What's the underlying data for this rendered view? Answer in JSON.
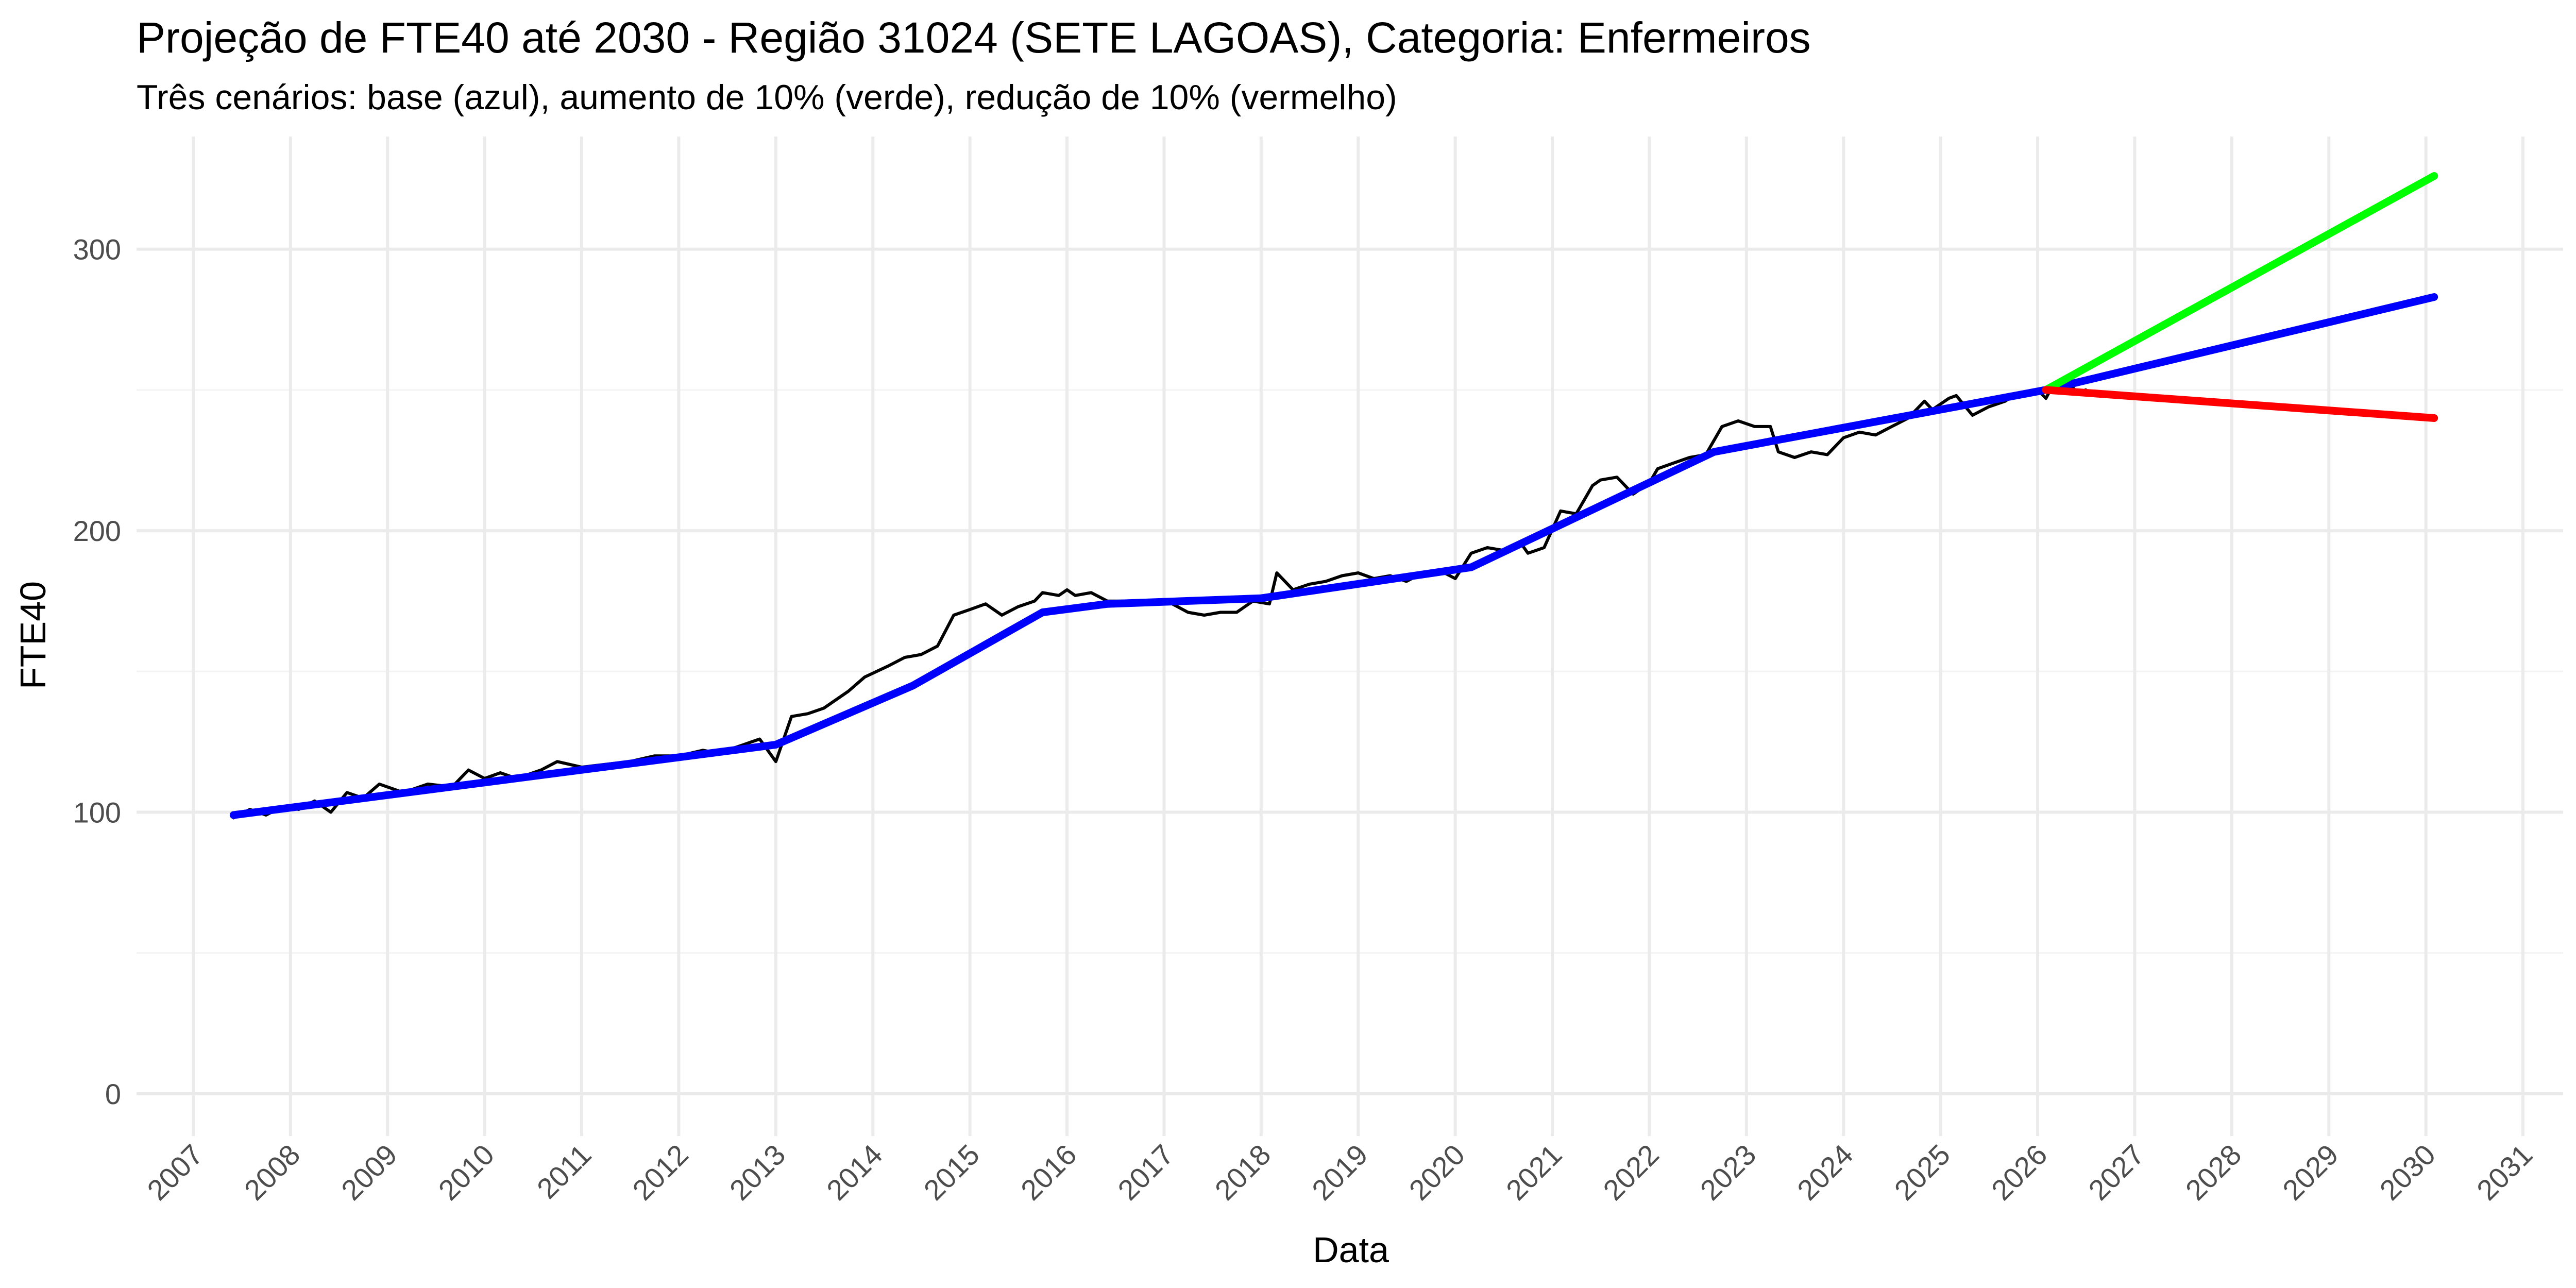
{
  "chart_data": {
    "type": "line",
    "title": "Projeção de FTE40 até 2030 - Região 31024 (SETE LAGOAS), Categoria: Enfermeiros",
    "subtitle": "Três cenários: base (azul), aumento de 10% (verde), redução de 10% (vermelho)",
    "xlabel": "Data",
    "ylabel": "FTE40",
    "x_type": "date",
    "xlim": [
      "2006-06-01",
      "2031-06-01"
    ],
    "x_ticks": [
      "2007",
      "2008",
      "2009",
      "2010",
      "2011",
      "2012",
      "2013",
      "2014",
      "2015",
      "2016",
      "2017",
      "2018",
      "2019",
      "2020",
      "2021",
      "2022",
      "2023",
      "2024",
      "2025",
      "2026",
      "2027",
      "2028",
      "2029",
      "2030",
      "2031"
    ],
    "ylim": [
      -15,
      340
    ],
    "y_ticks": [
      0,
      100,
      200,
      300
    ],
    "grid": true,
    "legend": "none",
    "series": [
      {
        "color": "#000000",
        "style": "thin",
        "points": [
          [
            "2007-06-01",
            98
          ],
          [
            "2007-08-01",
            101
          ],
          [
            "2007-10-01",
            99
          ],
          [
            "2007-12-01",
            102
          ],
          [
            "2008-02-01",
            101
          ],
          [
            "2008-04-01",
            104
          ],
          [
            "2008-06-01",
            100
          ],
          [
            "2008-08-01",
            107
          ],
          [
            "2008-10-01",
            105
          ],
          [
            "2008-12-01",
            110
          ],
          [
            "2009-03-01",
            107
          ],
          [
            "2009-06-01",
            110
          ],
          [
            "2009-09-01",
            109
          ],
          [
            "2009-11-01",
            115
          ],
          [
            "2010-01-01",
            112
          ],
          [
            "2010-03-01",
            114
          ],
          [
            "2010-05-01",
            112
          ],
          [
            "2010-08-01",
            115
          ],
          [
            "2010-10-01",
            118
          ],
          [
            "2011-01-01",
            116
          ],
          [
            "2011-04-01",
            117
          ],
          [
            "2011-07-01",
            118
          ],
          [
            "2011-10-01",
            120
          ],
          [
            "2012-01-01",
            120
          ],
          [
            "2012-04-01",
            122
          ],
          [
            "2012-06-01",
            121
          ],
          [
            "2012-09-01",
            124
          ],
          [
            "2012-11-01",
            126
          ],
          [
            "2013-01-01",
            118
          ],
          [
            "2013-03-01",
            134
          ],
          [
            "2013-05-01",
            135
          ],
          [
            "2013-07-01",
            137
          ],
          [
            "2013-10-01",
            143
          ],
          [
            "2013-12-01",
            148
          ],
          [
            "2014-03-01",
            152
          ],
          [
            "2014-05-01",
            155
          ],
          [
            "2014-07-01",
            156
          ],
          [
            "2014-09-01",
            159
          ],
          [
            "2014-11-01",
            170
          ],
          [
            "2015-01-01",
            172
          ],
          [
            "2015-03-01",
            174
          ],
          [
            "2015-05-01",
            170
          ],
          [
            "2015-07-01",
            173
          ],
          [
            "2015-09-01",
            175
          ],
          [
            "2015-10-01",
            178
          ],
          [
            "2015-12-01",
            177
          ],
          [
            "2016-01-01",
            179
          ],
          [
            "2016-02-01",
            177
          ],
          [
            "2016-04-01",
            178
          ],
          [
            "2016-06-01",
            175
          ],
          [
            "2016-08-01",
            175
          ],
          [
            "2016-10-01",
            174
          ],
          [
            "2016-12-01",
            175
          ],
          [
            "2017-02-01",
            174
          ],
          [
            "2017-04-01",
            171
          ],
          [
            "2017-06-01",
            170
          ],
          [
            "2017-08-01",
            171
          ],
          [
            "2017-10-01",
            171
          ],
          [
            "2017-12-01",
            175
          ],
          [
            "2018-02-01",
            174
          ],
          [
            "2018-03-01",
            185
          ],
          [
            "2018-05-01",
            179
          ],
          [
            "2018-07-01",
            181
          ],
          [
            "2018-09-01",
            182
          ],
          [
            "2018-11-01",
            184
          ],
          [
            "2019-01-01",
            185
          ],
          [
            "2019-03-01",
            183
          ],
          [
            "2019-05-01",
            184
          ],
          [
            "2019-07-01",
            182
          ],
          [
            "2019-09-01",
            185
          ],
          [
            "2019-11-01",
            186
          ],
          [
            "2020-01-01",
            183
          ],
          [
            "2020-03-01",
            192
          ],
          [
            "2020-05-01",
            194
          ],
          [
            "2020-07-01",
            193
          ],
          [
            "2020-09-01",
            196
          ],
          [
            "2020-10-01",
            192
          ],
          [
            "2020-12-01",
            194
          ],
          [
            "2021-02-01",
            207
          ],
          [
            "2021-04-01",
            206
          ],
          [
            "2021-06-01",
            216
          ],
          [
            "2021-07-01",
            218
          ],
          [
            "2021-09-01",
            219
          ],
          [
            "2021-11-01",
            213
          ],
          [
            "2022-01-01",
            217
          ],
          [
            "2022-02-01",
            222
          ],
          [
            "2022-04-01",
            224
          ],
          [
            "2022-06-01",
            226
          ],
          [
            "2022-08-01",
            227
          ],
          [
            "2022-10-01",
            237
          ],
          [
            "2022-12-01",
            239
          ],
          [
            "2023-02-01",
            237
          ],
          [
            "2023-04-01",
            237
          ],
          [
            "2023-05-01",
            228
          ],
          [
            "2023-07-01",
            226
          ],
          [
            "2023-09-01",
            228
          ],
          [
            "2023-11-01",
            227
          ],
          [
            "2024-01-01",
            233
          ],
          [
            "2024-03-01",
            235
          ],
          [
            "2024-05-01",
            234
          ],
          [
            "2024-07-01",
            237
          ],
          [
            "2024-09-01",
            240
          ],
          [
            "2024-11-01",
            246
          ],
          [
            "2024-12-01",
            243
          ],
          [
            "2025-02-01",
            247
          ],
          [
            "2025-03-01",
            248
          ],
          [
            "2025-05-01",
            241
          ],
          [
            "2025-07-01",
            244
          ],
          [
            "2025-09-01",
            246
          ],
          [
            "2025-10-01",
            248
          ],
          [
            "2025-12-01",
            249
          ],
          [
            "2026-01-01",
            250
          ],
          [
            "2026-02-01",
            247
          ],
          [
            "2026-03-01",
            252
          ],
          [
            "2026-04-01",
            253
          ],
          [
            "2026-05-01",
            252
          ],
          [
            "2026-06-01",
            249
          ],
          [
            "2026-07-01",
            250
          ]
        ]
      },
      {
        "color": "#0000ff",
        "style": "thick",
        "points": [
          [
            "2007-06-01",
            99
          ],
          [
            "2013-01-01",
            124
          ],
          [
            "2014-06-01",
            145
          ],
          [
            "2015-10-01",
            171
          ],
          [
            "2016-06-01",
            174
          ],
          [
            "2018-01-01",
            176
          ],
          [
            "2020-03-01",
            187
          ],
          [
            "2022-09-01",
            228
          ],
          [
            "2026-02-01",
            250
          ],
          [
            "2030-02-01",
            283
          ]
        ]
      },
      {
        "color": "#00ff00",
        "style": "thick",
        "points": [
          [
            "2026-02-01",
            250
          ],
          [
            "2030-02-01",
            326
          ]
        ]
      },
      {
        "color": "#ff0000",
        "style": "thick",
        "points": [
          [
            "2026-02-01",
            250
          ],
          [
            "2030-02-01",
            240
          ]
        ]
      }
    ]
  }
}
